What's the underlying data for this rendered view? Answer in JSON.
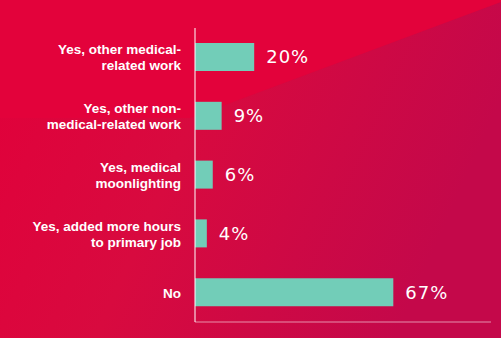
{
  "chart_data": {
    "type": "bar",
    "orientation": "horizontal",
    "categories": [
      "Yes, other medical-related work",
      "Yes, other non-medical-related work",
      "Yes, medical moonlighting",
      "Yes, added more hours to primary job",
      "No"
    ],
    "values": [
      20,
      9,
      6,
      4,
      67
    ],
    "value_labels": [
      "20%",
      "9%",
      "6%",
      "4%",
      "67%"
    ],
    "data_labels": true,
    "color": "#72cdb8",
    "xlim": [
      0,
      100
    ],
    "tick_labels": "y"
  }
}
